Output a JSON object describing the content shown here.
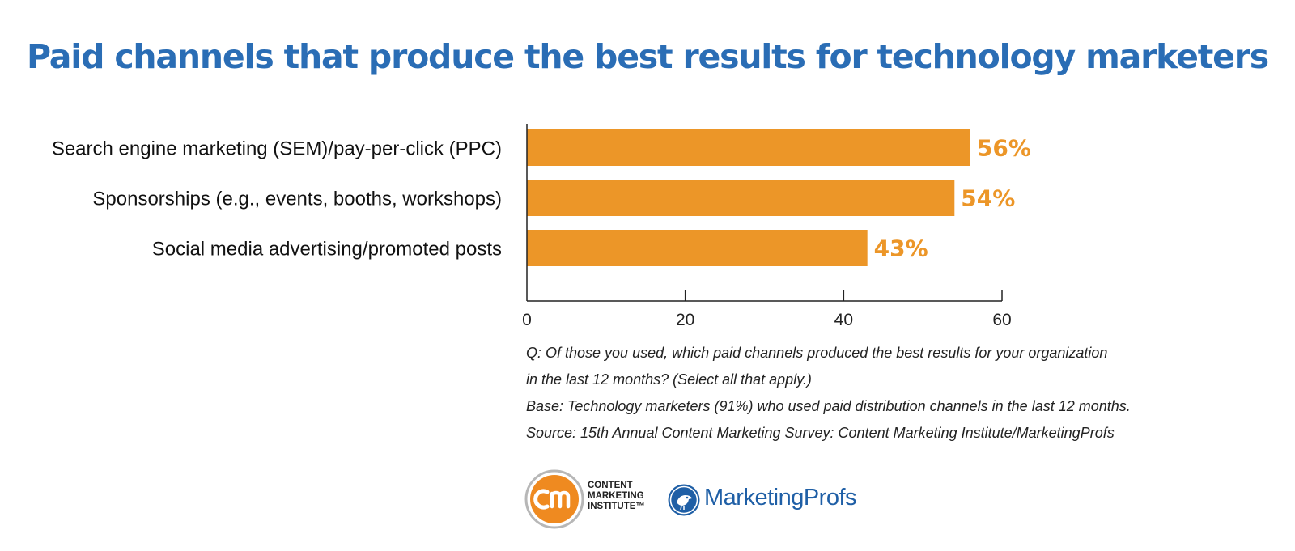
{
  "title": "Paid channels that produce the best results for technology marketers",
  "chart_data": {
    "type": "bar",
    "orientation": "horizontal",
    "categories": [
      "Search engine marketing (SEM)/pay-per-click (PPC)",
      "Sponsorships (e.g., events, booths, workshops)",
      "Social media advertising/promoted posts"
    ],
    "values": [
      56,
      54,
      43
    ],
    "data_labels": [
      "56%",
      "54%",
      "43%"
    ],
    "xlim": [
      0,
      60
    ],
    "xticks": [
      0,
      20,
      40,
      60
    ],
    "xlabel": "",
    "ylabel": "",
    "grid": false,
    "legend": "none"
  },
  "notes": [
    "Q: Of those you used, which paid channels produced the best results for your organization",
    "in the last 12 months? (Select all that apply.)",
    "Base: Technology marketers (91%) who used paid distribution channels in the last 12 months.",
    "Source: 15th Annual Content Marketing Survey: Content Marketing Institute/MarketingProfs"
  ],
  "logos": {
    "cmi": {
      "lines": [
        "CONTENT",
        "MARKETING",
        "INSTITUTE™"
      ],
      "icon": "cm-logo-icon"
    },
    "mp": {
      "text": "MarketingProfs",
      "icon": "bird-logo-icon"
    }
  },
  "colors": {
    "title": "#2a6db5",
    "bar": "#ec9628",
    "label": "#ec9628",
    "axis": "#222222",
    "cmi_orange": "#ef8a20",
    "mp_blue": "#1f5fa6"
  }
}
